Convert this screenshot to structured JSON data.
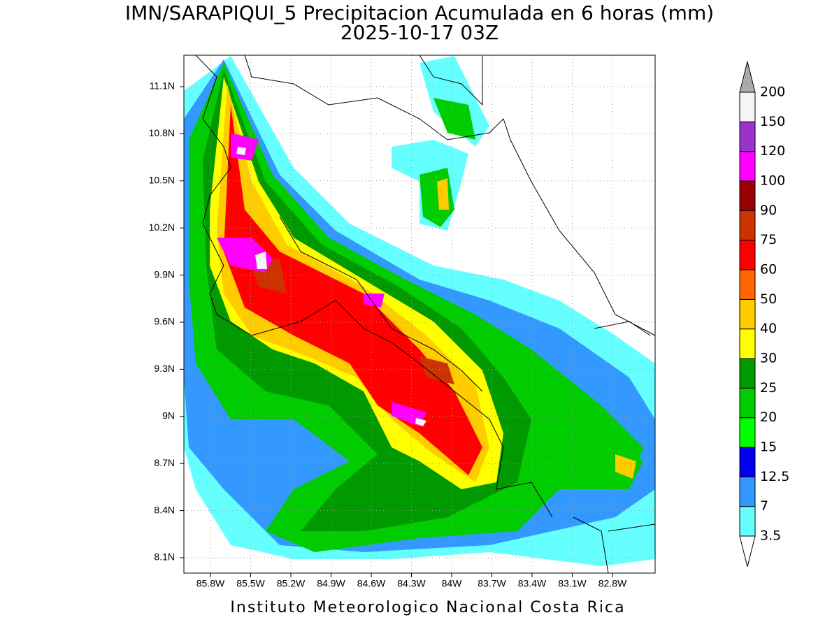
{
  "header": {
    "title": "IMN/SARAPIQUI_5 Precipitacion Acumulada en 6 horas (mm)",
    "subtitle": "2025-10-17 03Z"
  },
  "map": {
    "lat_labels": [
      "11.1N",
      "10.8N",
      "10.5N",
      "10.2N",
      "9.9N",
      "9.6N",
      "9.3N",
      "9N",
      "8.7N",
      "8.4N",
      "8.1N"
    ],
    "lon_labels": [
      "85.8W",
      "85.5W",
      "85.2W",
      "84.9W",
      "84.6W",
      "84.3W",
      "84W",
      "83.7W",
      "83.4W",
      "83.1W",
      "82.8W"
    ]
  },
  "colorbar": {
    "levels": [
      3.5,
      7,
      12.5,
      15,
      20,
      25,
      30,
      40,
      50,
      60,
      75,
      90,
      100,
      120,
      150,
      200
    ],
    "colors": [
      "#66ffff",
      "#3399ff",
      "#0000ee",
      "#00ff00",
      "#00cc00",
      "#009900",
      "#ffff00",
      "#ffcc00",
      "#ff6600",
      "#ff0000",
      "#cc3300",
      "#990000",
      "#ff00ff",
      "#9933cc",
      "#f5f5f5"
    ],
    "over_color": "#aaaaaa",
    "under_color": "#ffffff"
  },
  "footer": "Instituto Meteorologico Nacional Costa Rica"
}
